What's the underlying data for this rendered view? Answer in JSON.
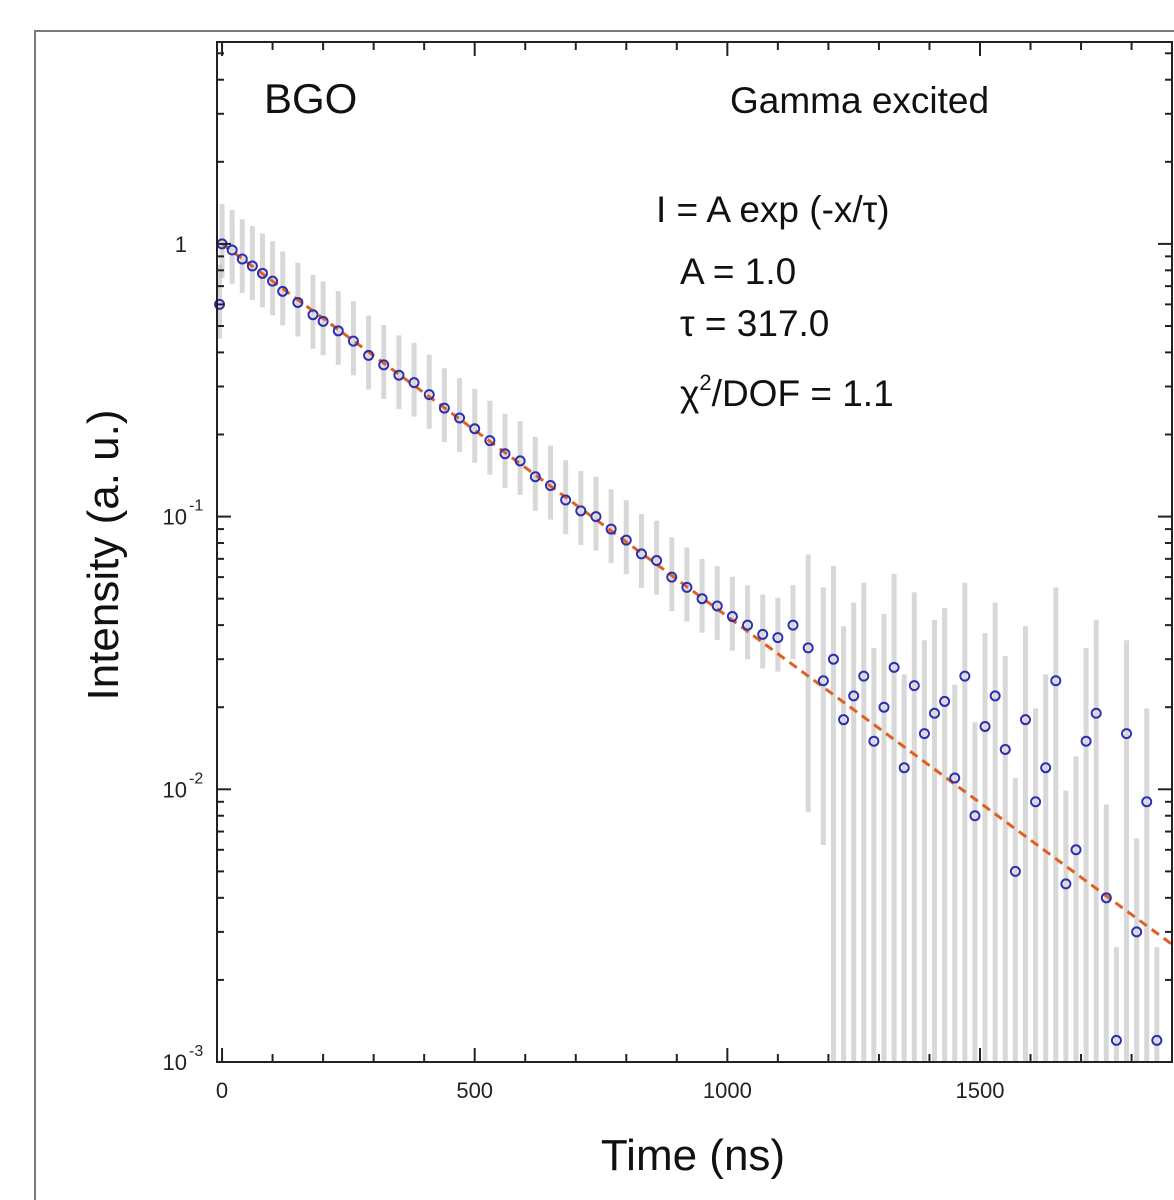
{
  "chart_data": {
    "type": "scatter",
    "title": "",
    "xlabel": "Time (ns)",
    "ylabel": "Intensity (a. u.)",
    "xlim": [
      -10,
      1880
    ],
    "ylim": [
      0.001,
      5.5
    ],
    "yscale": "log",
    "x_ticks": [
      {
        "value": 0,
        "label": "0"
      },
      {
        "value": 500,
        "label": "500"
      },
      {
        "value": 1000,
        "label": "1000"
      },
      {
        "value": 1500,
        "label": "1500"
      }
    ],
    "y_ticks": [
      {
        "value": 1,
        "base": "1",
        "exp": ""
      },
      {
        "value": 0.1,
        "base": "10",
        "exp": "-1"
      },
      {
        "value": 0.01,
        "base": "10",
        "exp": "-2"
      },
      {
        "value": 0.001,
        "base": "10",
        "exp": "-3"
      }
    ],
    "grid": false,
    "annotations": {
      "sample": "BGO",
      "excitation": "Gamma excited",
      "formula": "I = A exp (-x/τ)",
      "param_A": "A = 1.0",
      "param_tau": "τ = 317.0",
      "chi_prefix": "χ",
      "chi_exp": "2",
      "chi_suffix": "/DOF = 1.1"
    },
    "series": [
      {
        "kind": "data",
        "marker": "open-circle",
        "color": "#2b2fb0",
        "error_band_color": "#b8b8b8",
        "x": [
          -5,
          0,
          20,
          40,
          60,
          80,
          100,
          120,
          150,
          180,
          200,
          230,
          260,
          290,
          320,
          350,
          380,
          410,
          440,
          470,
          500,
          530,
          560,
          590,
          620,
          650,
          680,
          710,
          740,
          770,
          800,
          830,
          860,
          890,
          920,
          950,
          980,
          1010,
          1040,
          1070,
          1100,
          1130,
          1160,
          1190,
          1210,
          1230,
          1250,
          1270,
          1290,
          1310,
          1330,
          1350,
          1370,
          1390,
          1410,
          1430,
          1450,
          1470,
          1490,
          1510,
          1530,
          1550,
          1570,
          1590,
          1610,
          1630,
          1650,
          1670,
          1690,
          1710,
          1730,
          1750,
          1770,
          1790,
          1810,
          1830,
          1850
        ],
        "y": [
          0.6,
          1.0,
          0.95,
          0.88,
          0.83,
          0.78,
          0.73,
          0.67,
          0.61,
          0.55,
          0.52,
          0.48,
          0.44,
          0.39,
          0.36,
          0.33,
          0.31,
          0.28,
          0.25,
          0.23,
          0.21,
          0.19,
          0.17,
          0.16,
          0.14,
          0.13,
          0.115,
          0.105,
          0.1,
          0.09,
          0.082,
          0.073,
          0.069,
          0.06,
          0.055,
          0.05,
          0.047,
          0.043,
          0.04,
          0.037,
          0.036,
          0.04,
          0.033,
          0.025,
          0.03,
          0.018,
          0.022,
          0.026,
          0.015,
          0.02,
          0.028,
          0.012,
          0.024,
          0.016,
          0.019,
          0.021,
          0.011,
          0.026,
          0.008,
          0.017,
          0.022,
          0.014,
          0.005,
          0.018,
          0.009,
          0.012,
          0.025,
          0.0045,
          0.006,
          0.015,
          0.019,
          0.004,
          0.0012,
          0.016,
          0.003,
          0.009,
          0.0012
        ]
      },
      {
        "kind": "fit",
        "line_style": "dashed",
        "color": "#e06020",
        "x": [
          0,
          1880
        ],
        "y": [
          1.0,
          0.0027
        ]
      }
    ]
  }
}
